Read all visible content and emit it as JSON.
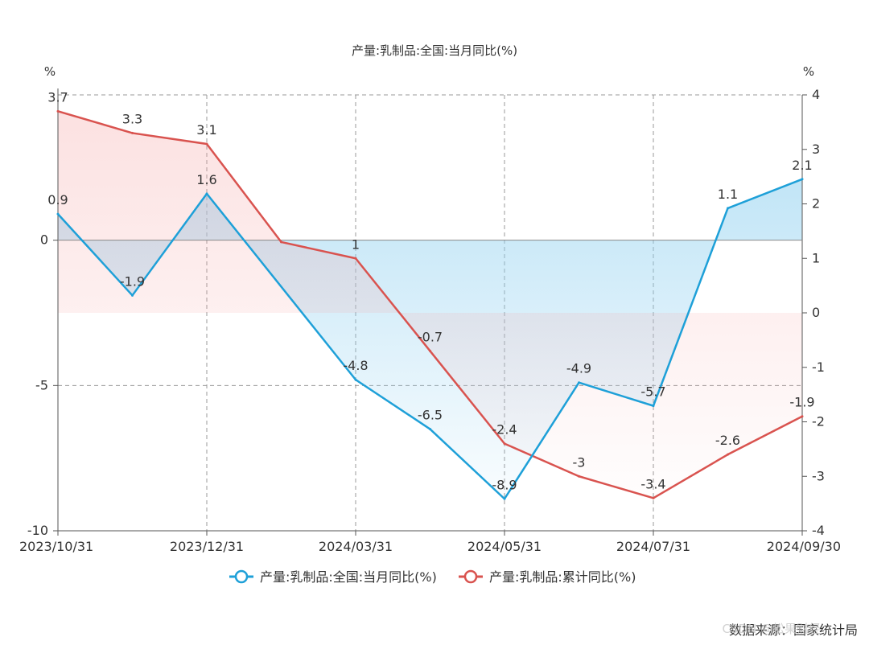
{
  "chart_data": {
    "type": "line",
    "title": "产量:乳制品:全国:当月同比(%)",
    "left_unit": "%",
    "right_unit": "%",
    "x_ticks": [
      "2023/10/31",
      "2023/12/31",
      "2024/03/31",
      "2024/05/31",
      "2024/07/31",
      "2024/09/30"
    ],
    "y_left": {
      "ticks": [
        "0",
        "-5",
        "-10"
      ],
      "range": [
        -10,
        5
      ]
    },
    "y_right": {
      "ticks": [
        "4",
        "3",
        "2",
        "1",
        "0",
        "-1",
        "-2",
        "-3",
        "-4"
      ],
      "range": [
        -4,
        4
      ]
    },
    "categories": [
      "2023/10",
      "2023/11",
      "2023/12",
      "2024/01-02",
      "2024/03",
      "2024/04",
      "2024/05",
      "2024/06",
      "2024/07",
      "2024/08",
      "2024/09"
    ],
    "series": [
      {
        "name": "产量:乳制品:全国:当月同比(%)",
        "axis": "left",
        "color": "#1ea0d8",
        "values": [
          0.9,
          -1.9,
          1.6,
          null,
          -4.8,
          -6.5,
          -8.9,
          -4.9,
          -5.7,
          1.1,
          2.1
        ],
        "labels": [
          "0.9",
          "-1.9",
          "1.6",
          null,
          "-4.8",
          "-6.5",
          "-8.9",
          "-4.9",
          "-5.7",
          "1.1",
          "2.1"
        ]
      },
      {
        "name": "产量:乳制品:累计同比(%)",
        "axis": "right",
        "color": "#d9534f",
        "values": [
          3.7,
          3.3,
          3.1,
          1.3,
          1,
          -0.7,
          -2.4,
          -3,
          -3.4,
          -2.6,
          -1.9
        ],
        "labels": [
          "3.7",
          "3.3",
          "3.1",
          null,
          "1",
          "-0.7",
          "-2.4",
          "-3",
          "-3.4",
          "-2.6",
          "-1.9"
        ]
      }
    ],
    "grid": true,
    "legend_position": "bottom-center"
  },
  "footer": {
    "source": "数据来源：国家统计局",
    "watermark": "CSDN @松果财经"
  }
}
